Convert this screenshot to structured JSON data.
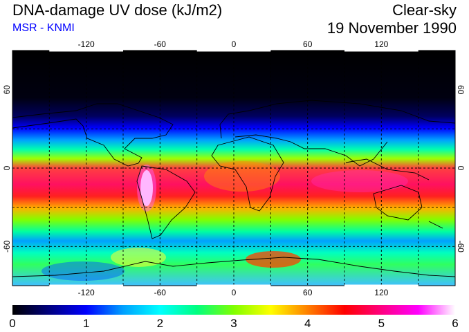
{
  "header": {
    "title": "DNA-damage UV dose (kJ/m2)",
    "credit": "MSR - KNMI",
    "condition": "Clear-sky",
    "date": "19 November 1990"
  },
  "colors": {
    "credit": "#0000ff",
    "scale": [
      "#000000",
      "#000080",
      "#0000ff",
      "#00a0ff",
      "#00ffff",
      "#00ff80",
      "#80ff00",
      "#ffff00",
      "#ff8000",
      "#ff0000",
      "#ff0080",
      "#ff00ff",
      "#ffffff"
    ]
  },
  "map": {
    "longitude_ticks": [
      "-120",
      "-60",
      "0",
      "60",
      "120"
    ],
    "latitude_ticks": [
      "60",
      "0",
      "-60"
    ]
  },
  "colorbar": {
    "min": 0,
    "max": 6,
    "tick_labels": [
      "0",
      "1",
      "2",
      "3",
      "4",
      "5",
      "6"
    ]
  }
}
